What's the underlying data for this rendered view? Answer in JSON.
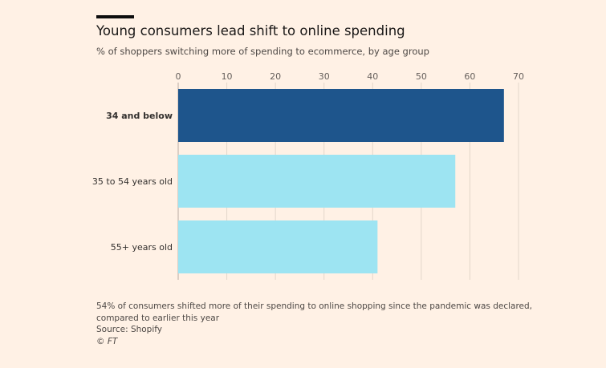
{
  "title": "Young consumers lead shift to online spending",
  "subtitle": "% of shoppers switching more of spending to ecommerce, by age group",
  "note_line1": "54% of consumers shifted more of their spending to online shopping since the pandemic was declared,",
  "note_line2": "compared to earlier this year",
  "source": "Source: Shopify",
  "credit": "© FT",
  "colors": {
    "highlight": "#1e558c",
    "default": "#9de4f2",
    "background": "#fff1e5"
  },
  "chart_data": {
    "type": "bar",
    "orientation": "horizontal",
    "title": "Young consumers lead shift to online spending",
    "subtitle": "% of shoppers switching more of spending to ecommerce, by age group",
    "categories": [
      "34 and below",
      "35 to 54 years old",
      "55+ years old"
    ],
    "values": [
      67,
      57,
      41
    ],
    "highlighted": [
      "34 and below"
    ],
    "xlim": [
      0,
      70
    ],
    "xticks": [
      0,
      10,
      20,
      30,
      40,
      50,
      60,
      70
    ],
    "grid": true,
    "tick_position": "top"
  }
}
